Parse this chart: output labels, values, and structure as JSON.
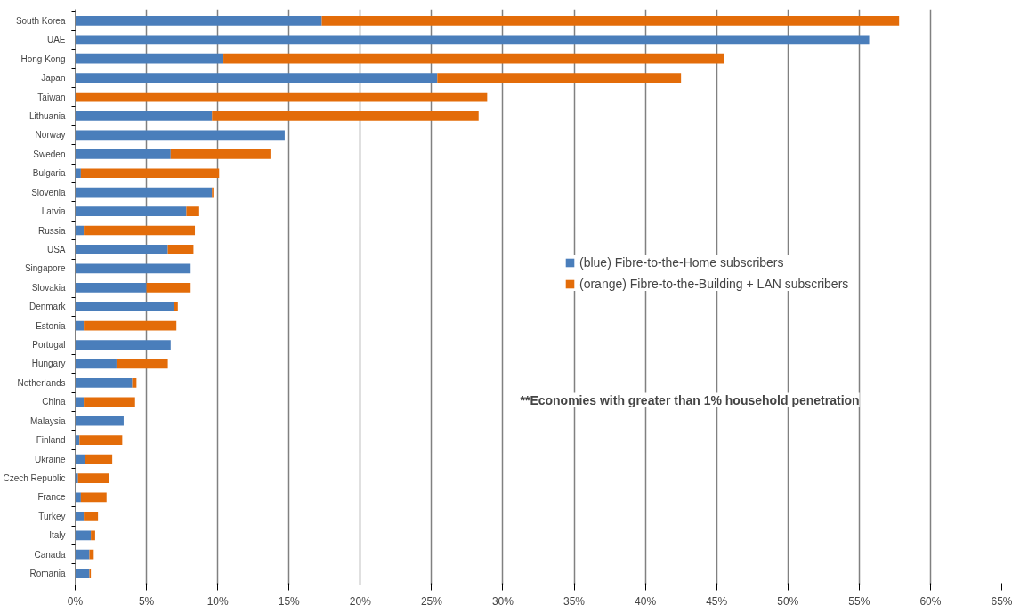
{
  "chart_data": {
    "type": "bar",
    "orientation": "horizontal",
    "stacked": true,
    "categories": [
      "South Korea",
      "UAE",
      "Hong Kong",
      "Japan",
      "Taiwan",
      "Lithuania",
      "Norway",
      "Sweden",
      "Bulgaria",
      "Slovenia",
      "Latvia",
      "Russia",
      "USA",
      "Singapore",
      "Slovakia",
      "Denmark",
      "Estonia",
      "Portugal",
      "Hungary",
      "Netherlands",
      "China",
      "Malaysia",
      "Finland",
      "Ukraine",
      "Czech Republic",
      "France",
      "Turkey",
      "Italy",
      "Canada",
      "Romania"
    ],
    "series": [
      {
        "name": "(blue) Fibre-to-the-Home subscribers",
        "color": "#4a7ebb",
        "values": [
          17.3,
          55.7,
          10.4,
          25.4,
          0,
          9.6,
          14.7,
          6.7,
          0.4,
          9.6,
          7.8,
          0.6,
          6.5,
          8.1,
          5.0,
          6.9,
          0.6,
          6.7,
          2.9,
          4.0,
          0.6,
          3.4,
          0.3,
          0.7,
          0.2,
          0.4,
          0.6,
          1.1,
          1.0,
          1.0
        ]
      },
      {
        "name": "(orange) Fibre-to-the-Building + LAN subscribers",
        "color": "#e36c09",
        "values": [
          40.5,
          0,
          35.1,
          17.1,
          28.9,
          18.7,
          0,
          7.0,
          9.7,
          0.1,
          0.9,
          7.8,
          1.8,
          0,
          3.1,
          0.3,
          6.5,
          0,
          3.6,
          0.3,
          3.6,
          0,
          3.0,
          1.9,
          2.2,
          1.8,
          1.0,
          0.3,
          0.3,
          0.1
        ]
      }
    ],
    "xlim": [
      0,
      65
    ],
    "xticks": [
      {
        "value": 0,
        "label": "0%"
      },
      {
        "value": 5,
        "label": "5%"
      },
      {
        "value": 10,
        "label": "10%"
      },
      {
        "value": 15,
        "label": "15%"
      },
      {
        "value": 20,
        "label": "20%"
      },
      {
        "value": 25,
        "label": "25%"
      },
      {
        "value": 30,
        "label": "30%"
      },
      {
        "value": 35,
        "label": "35%"
      },
      {
        "value": 40,
        "label": "40%"
      },
      {
        "value": 45,
        "label": "45%"
      },
      {
        "value": 50,
        "label": "50%"
      },
      {
        "value": 55,
        "label": "55%"
      },
      {
        "value": 60,
        "label": "60%"
      },
      {
        "value": 65,
        "label": "65%"
      }
    ],
    "grid": "x",
    "legend": "right",
    "annotations": [
      "**Economies with greater than 1% household penetration"
    ]
  }
}
